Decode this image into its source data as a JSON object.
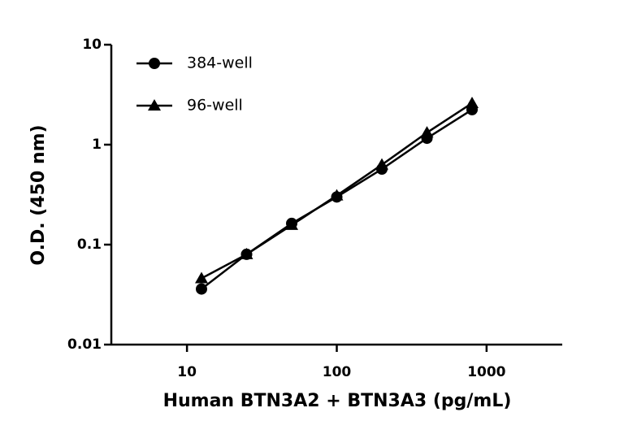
{
  "chart_data": {
    "type": "line",
    "x_label": "Human BTN3A2 + BTN3A3 (pg/mL)",
    "y_label": "O.D. (450 nm)",
    "x": [
      12.5,
      25,
      50,
      100,
      200,
      400,
      800
    ],
    "series": [
      {
        "name": "384-well",
        "color": "#000000",
        "marker": "circle",
        "values": [
          0.036,
          0.08,
          0.163,
          0.3,
          0.57,
          1.16,
          2.24
        ]
      },
      {
        "name": "96-well",
        "color": "#000000",
        "marker": "triangle",
        "values": [
          0.046,
          0.08,
          0.157,
          0.31,
          0.63,
          1.32,
          2.6
        ]
      }
    ],
    "xlim": [
      3.125,
      3200
    ],
    "xticks": [
      10,
      100,
      1000
    ],
    "xscale": "log",
    "ylim": [
      0.01,
      10
    ],
    "yticks": [
      0.01,
      0.1,
      1,
      10
    ],
    "yscale": "log",
    "legend": "upper left",
    "grid": false
  }
}
